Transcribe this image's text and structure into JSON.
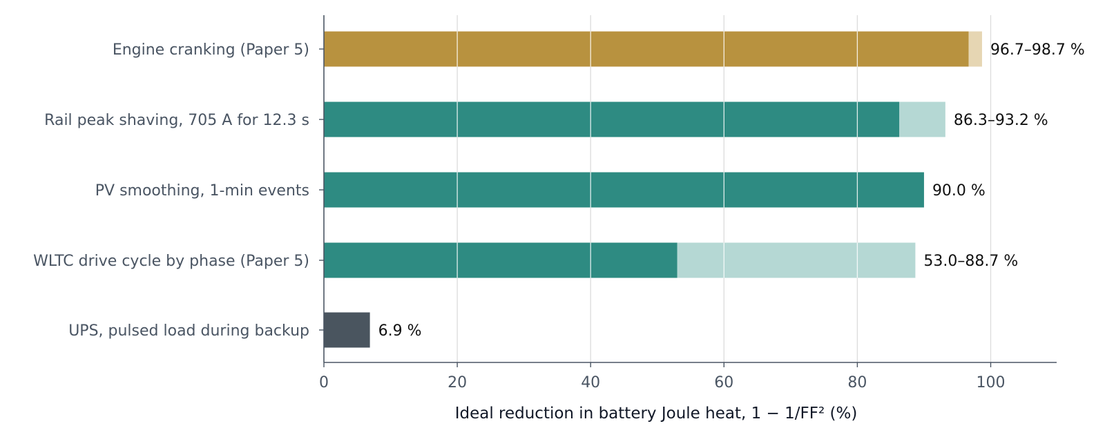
{
  "chart_data": {
    "type": "bar",
    "orientation": "horizontal",
    "title": "",
    "xlabel": "Ideal reduction in battery Joule heat, 1 − 1/FF² (%)",
    "ylabel": "",
    "xlim": [
      0,
      110
    ],
    "xticks": [
      0,
      20,
      40,
      60,
      80,
      100
    ],
    "grid": "vertical",
    "legend": "none",
    "categories": [
      "Engine cranking (Paper 5)",
      "Rail peak shaving, 705 A for 12.3 s",
      "PV smoothing, 1-min events",
      "WLTC drive cycle by phase (Paper 5)",
      "UPS, pulsed load during backup"
    ],
    "bars": [
      {
        "low": 96.7,
        "high": 98.7,
        "label": "96.7–98.7 %",
        "color": "#b8923f",
        "range_color": "#e6d6b3"
      },
      {
        "low": 86.3,
        "high": 93.2,
        "label": "86.3–93.2 %",
        "color": "#2e8b82",
        "range_color": "#b5d8d4"
      },
      {
        "low": 90.0,
        "high": 90.0,
        "label": "90.0 %",
        "color": "#2e8b82",
        "range_color": "#b5d8d4"
      },
      {
        "low": 53.0,
        "high": 88.7,
        "label": "53.0–88.7 %",
        "color": "#2e8b82",
        "range_color": "#b5d8d4"
      },
      {
        "low": 6.9,
        "high": 6.9,
        "label": "6.9 %",
        "color": "#4a555f",
        "range_color": "#c7cdd2"
      }
    ]
  }
}
